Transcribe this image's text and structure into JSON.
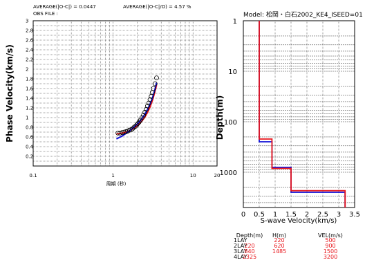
{
  "chart_data": [
    {
      "type": "scatter",
      "header": {
        "avg_abs": "AVERAGE(|O-C|) = 0.0447",
        "avg_rel": "AVERAGE(|O-C|/O) = 4.57 %",
        "obs_file": "OBS FILE :"
      },
      "ylabel": "Phase Velocity(km/s)",
      "xlabel": "周期 (秒)",
      "x_scale": "log",
      "xlim": [
        0.1,
        20
      ],
      "ylim": [
        0,
        3
      ],
      "x_tick_labels": [
        "0.1",
        "1",
        "10",
        "20"
      ],
      "y_tick_labels": [
        "0.2",
        "0.4",
        "0.6",
        "0.8",
        "1",
        "1.2",
        "1.4",
        "1.6",
        "1.8",
        "2",
        "2.2",
        "2.4",
        "2.6",
        "2.8",
        "3"
      ],
      "grid": true,
      "observed_points": {
        "color": "#000000",
        "x": [
          1.15,
          1.22,
          1.3,
          1.38,
          1.45,
          1.52,
          1.6,
          1.68,
          1.75,
          1.83,
          1.9,
          1.98,
          2.05,
          2.12,
          2.2,
          2.3,
          2.4,
          2.5,
          2.6,
          2.7,
          2.8,
          2.9,
          3.0,
          3.1,
          3.2,
          3.35,
          3.5
        ],
        "y": [
          0.68,
          0.68,
          0.69,
          0.7,
          0.71,
          0.72,
          0.74,
          0.75,
          0.77,
          0.8,
          0.82,
          0.85,
          0.88,
          0.91,
          0.95,
          1.0,
          1.05,
          1.11,
          1.17,
          1.24,
          1.3,
          1.37,
          1.44,
          1.52,
          1.6,
          1.7,
          1.82
        ]
      },
      "series": [
        {
          "color": "#e8141a",
          "x": [
            1.1,
            1.3,
            1.5,
            1.7,
            1.9,
            2.1,
            2.3,
            2.5,
            2.7,
            2.9,
            3.1,
            3.3,
            3.5
          ],
          "y": [
            0.66,
            0.68,
            0.71,
            0.75,
            0.8,
            0.86,
            0.93,
            1.01,
            1.11,
            1.22,
            1.35,
            1.5,
            1.67
          ]
        },
        {
          "color": "#1010d8",
          "x": [
            1.1,
            1.3,
            1.5,
            1.7,
            1.9,
            2.1,
            2.3,
            2.5,
            2.7,
            2.9,
            3.1,
            3.3,
            3.5
          ],
          "y": [
            0.56,
            0.62,
            0.69,
            0.76,
            0.83,
            0.9,
            0.98,
            1.07,
            1.17,
            1.28,
            1.4,
            1.55,
            1.72
          ]
        }
      ]
    },
    {
      "type": "line",
      "title": "Model: 松岡・白石2002_KE4_ISEED=01",
      "ylabel": "Depth(m)",
      "xlabel": "S-wave Velocity(km/s)",
      "y_scale": "log",
      "y_reversed": true,
      "ylim": [
        1,
        5000
      ],
      "xlim": [
        0,
        3.5
      ],
      "x_tick_labels": [
        "0",
        "0.5",
        "1",
        "1.5",
        "2",
        "2.5",
        "3",
        "3.5"
      ],
      "y_tick_labels": [
        "1",
        "10",
        "100",
        "1000"
      ],
      "grid": true,
      "series": [
        {
          "color": "#e8141a",
          "x": [
            0.5,
            0.5,
            0.9,
            0.9,
            1.5,
            1.5,
            3.2,
            3.2
          ],
          "depth": [
            1,
            220,
            220,
            840,
            840,
            2325,
            2325,
            5000
          ]
        },
        {
          "color": "#1010d8",
          "x": [
            0.5,
            0.5,
            0.9,
            0.9,
            1.5,
            1.5,
            3.2,
            3.2
          ],
          "depth": [
            1,
            250,
            250,
            800,
            800,
            2500,
            2500,
            5000
          ]
        }
      ],
      "table": {
        "headers": [
          "Depth(m)",
          "H(m)",
          "VEL(m/s)"
        ],
        "rows": [
          {
            "lay": "1LAY",
            "depth": "",
            "h": "220",
            "vel": "500"
          },
          {
            "lay": "2LAY",
            "depth": "220",
            "h": "620",
            "vel": "900"
          },
          {
            "lay": "3LAY",
            "depth": "840",
            "h": "1485",
            "vel": "1500"
          },
          {
            "lay": "4LAY",
            "depth": "2325",
            "h": "",
            "vel": "3200"
          }
        ]
      }
    }
  ]
}
